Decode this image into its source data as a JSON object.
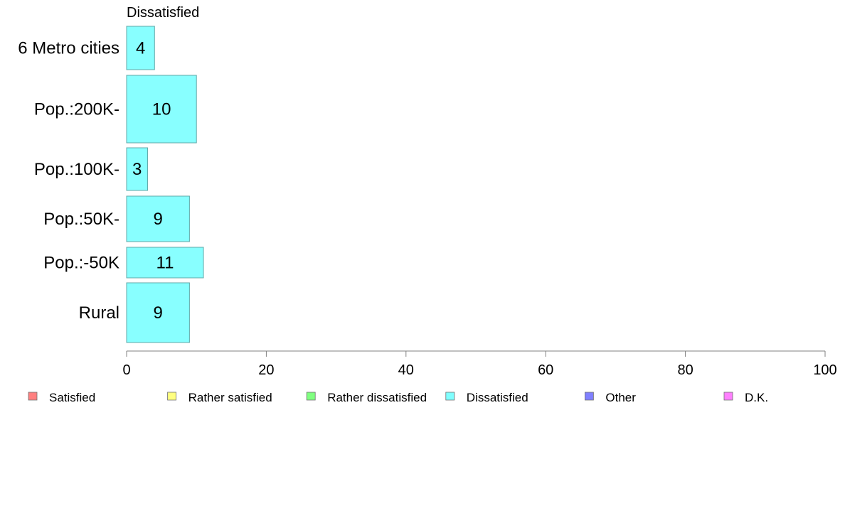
{
  "chart_data": {
    "type": "bar",
    "orientation": "horizontal",
    "panel_title": "Dissatisfied",
    "categories": [
      "6 Metro cities",
      "Pop.:200K-",
      "Pop.:100K-",
      "Pop.:50K-",
      "Pop.:-50K",
      "Rural"
    ],
    "series": [
      {
        "name": "Dissatisfied",
        "values": [
          4,
          10,
          3,
          9,
          11,
          9
        ]
      }
    ],
    "xlim": [
      0,
      100
    ],
    "xticks": [
      0,
      20,
      40,
      60,
      80,
      100
    ],
    "grid": false,
    "legend": {
      "placement": "bottom",
      "items": [
        {
          "label": "Satisfied",
          "color": "#ff8080"
        },
        {
          "label": "Rather satisfied",
          "color": "#ffff80"
        },
        {
          "label": "Rather dissatisfied",
          "color": "#80ff80"
        },
        {
          "label": "Dissatisfied",
          "color": "#80ffff"
        },
        {
          "label": "Other",
          "color": "#8080ff"
        },
        {
          "label": "D.K.",
          "color": "#ff80ff"
        }
      ]
    },
    "bar_color": "#88ffff",
    "bar_stroke": "#5fa8a8"
  }
}
